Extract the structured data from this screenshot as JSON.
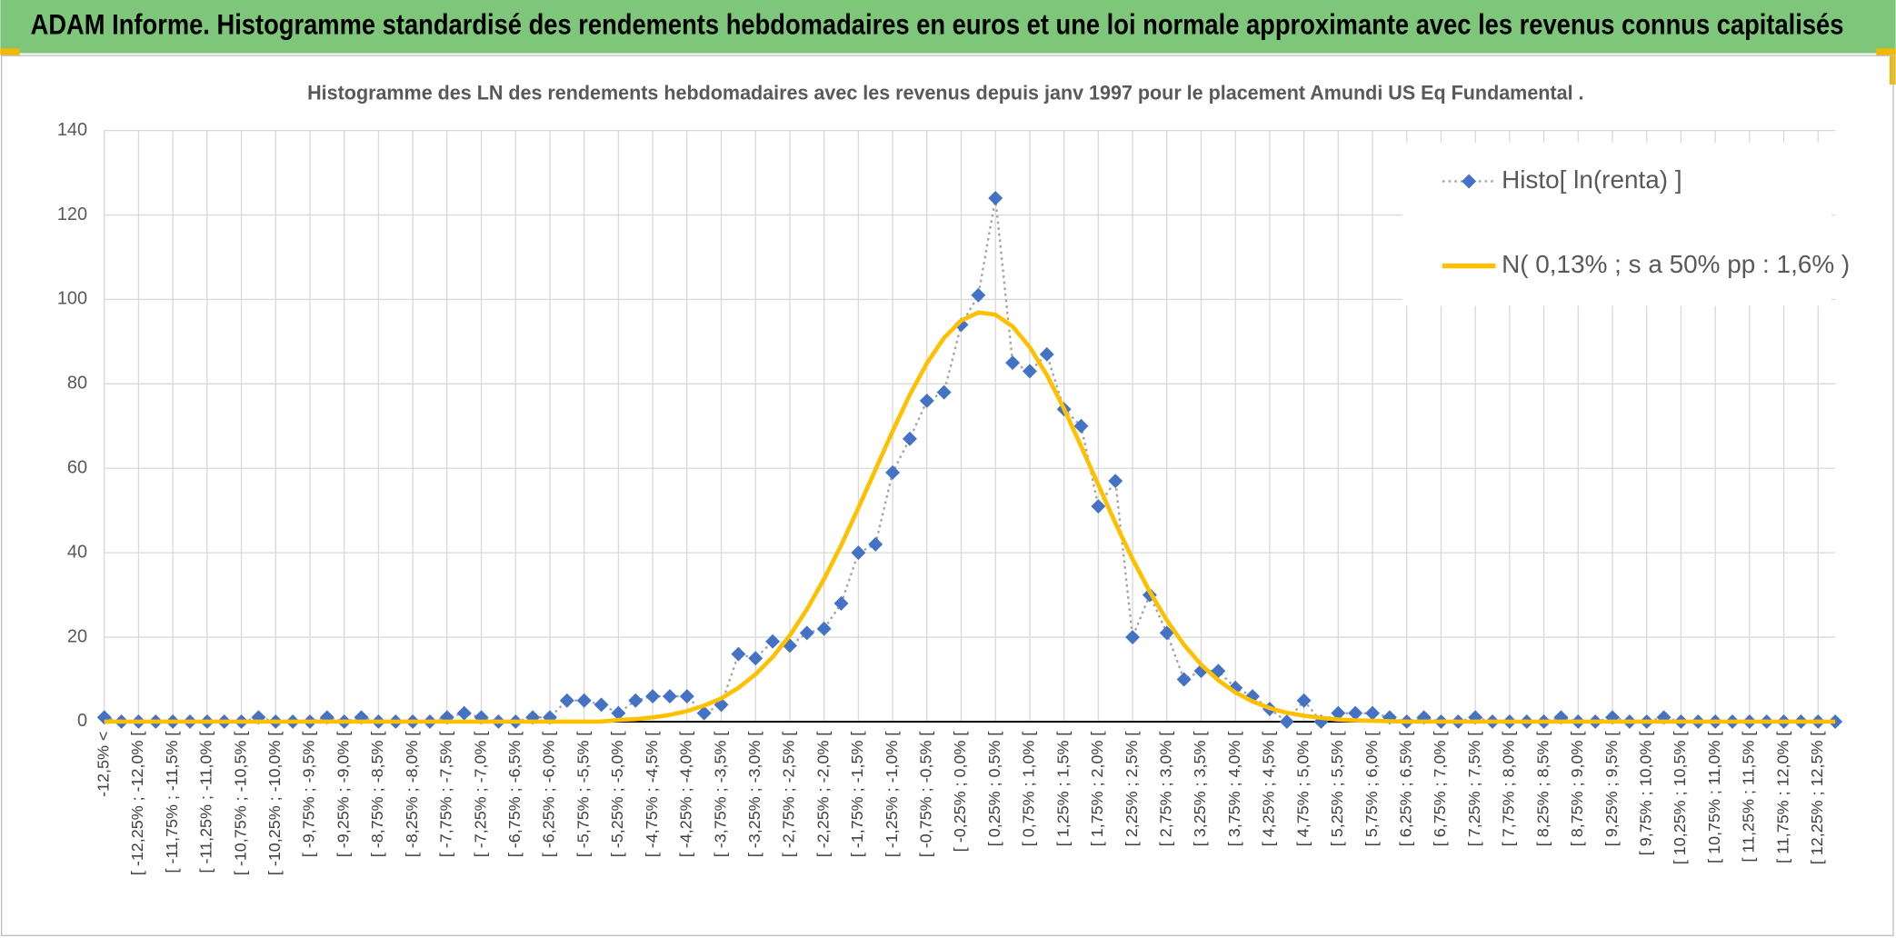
{
  "page_title": "ADAM Informe. Histogramme standardisé des rendements hebdomadaires en euros et une loi normale approximante avec les revenus connus capitalisés",
  "chart_data": {
    "type": "line",
    "title": "Histogramme des LN des rendements hebdomadaires avec les revenus depuis janv 1997 pour le placement Amundi US Eq Fundamental .",
    "categories": [
      "-12,5% <",
      null,
      "[ -12,25% ; -12,0% [",
      null,
      "[ -11,75% ; -11,5% [",
      null,
      "[ -11,25% ; -11,0% [",
      null,
      "[ -10,75% ; -10,5% [",
      null,
      "[ -10,25% ; -10,0% [",
      null,
      "[ -9,75% ; -9,5% [",
      null,
      "[ -9,25% ; -9,0% [",
      null,
      "[ -8,75% ; -8,5% [",
      null,
      "[ -8,25% ; -8,0% [",
      null,
      "[ -7,75% ; -7,5% [",
      null,
      "[ -7,25% ; -7,0% [",
      null,
      "[ -6,75% ; -6,5% [",
      null,
      "[ -6,25% ; -6,0% [",
      null,
      "[ -5,75% ; -5,5% [",
      null,
      "[ -5,25% ; -5,0% [",
      null,
      "[ -4,75% ; -4,5% [",
      null,
      "[ -4,25% ; -4,0% [",
      null,
      "[ -3,75% ; -3,5% [",
      null,
      "[ -3,25% ; -3,0% [",
      null,
      "[ -2,75% ; -2,5% [",
      null,
      "[ -2,25% ; -2,0% [",
      null,
      "[ -1,75% ; -1,5% [",
      null,
      "[ -1,25% ; -1,0% [",
      null,
      "[ -0,75% ; -0,5% [",
      null,
      "[ -0,25% ; 0,0% [",
      null,
      "[ 0,25% ; 0,5% [",
      null,
      "[ 0,75% ; 1,0% [",
      null,
      "[ 1,25% ; 1,5% [",
      null,
      "[ 1,75% ; 2,0% [",
      null,
      "[ 2,25% ; 2,5% [",
      null,
      "[ 2,75% ; 3,0% [",
      null,
      "[ 3,25% ; 3,5% [",
      null,
      "[ 3,75% ; 4,0% [",
      null,
      "[ 4,25% ; 4,5% [",
      null,
      "[ 4,75% ; 5,0% [",
      null,
      "[ 5,25% ; 5,5% [",
      null,
      "[ 5,75% ; 6,0% [",
      null,
      "[ 6,25% ; 6,5% [",
      null,
      "[ 6,75% ; 7,0% [",
      null,
      "[ 7,25% ; 7,5% [",
      null,
      "[ 7,75% ; 8,0% [",
      null,
      "[ 8,25% ; 8,5% [",
      null,
      "[ 8,75% ; 9,0% [",
      null,
      "[ 9,25% ; 9,5% [",
      null,
      "[ 9,75% ; 10,0% [",
      null,
      "[ 10,25% ; 10,5% [",
      null,
      "[ 10,75% ; 11,0% [",
      null,
      "[ 11,25% ; 11,5% [",
      null,
      "[ 11,75% ; 12,0% [",
      null,
      "[ 12,25% ; 12,5% [",
      null
    ],
    "series": [
      {
        "name": "Histo[ ln(renta) ]",
        "color": "#4472c4",
        "line_color": "#a5a5a5",
        "marker": "diamond",
        "values": [
          1,
          0,
          0,
          0,
          0,
          0,
          0,
          0,
          0,
          1,
          0,
          0,
          0,
          1,
          0,
          1,
          0,
          0,
          0,
          0,
          1,
          2,
          1,
          0,
          0,
          1,
          1,
          5,
          5,
          4,
          2,
          5,
          6,
          6,
          6,
          2,
          4,
          16,
          15,
          19,
          18,
          21,
          22,
          28,
          40,
          42,
          59,
          67,
          76,
          78,
          94,
          101,
          124,
          85,
          83,
          87,
          74,
          70,
          51,
          57,
          20,
          30,
          21,
          10,
          12,
          12,
          8,
          6,
          3,
          0,
          5,
          0,
          2,
          2,
          2,
          1,
          0,
          1,
          0,
          0,
          1,
          0,
          0,
          0,
          0,
          1,
          0,
          0,
          1,
          0,
          0,
          1,
          0,
          0,
          0,
          0,
          0,
          0,
          0,
          0,
          0,
          0
        ]
      },
      {
        "name": "N( 0,13% ; s a 50% pp : 1,6% )",
        "color": "#ffc000",
        "values": [
          0,
          0,
          0,
          0,
          0,
          0,
          0,
          0,
          0,
          0,
          0,
          0,
          0,
          0,
          0,
          0,
          0,
          0,
          0,
          0,
          0,
          0,
          0,
          0,
          0,
          0,
          0,
          0,
          0,
          0,
          0.4,
          0.6,
          1.0,
          1.6,
          2.5,
          3.8,
          5.5,
          8.0,
          11.2,
          15.3,
          20.4,
          26.6,
          33.8,
          41.8,
          50.6,
          59.7,
          68.8,
          77.4,
          84.9,
          90.9,
          95.0,
          96.9,
          96.4,
          93.6,
          88.7,
          82.1,
          74.1,
          65.2,
          56.1,
          47.0,
          38.5,
          30.8,
          24.0,
          18.2,
          13.5,
          9.8,
          6.9,
          4.8,
          3.2,
          2.1,
          1.4,
          0.9,
          0.5,
          0.3,
          0.2,
          0.1,
          0,
          0,
          0,
          0,
          0,
          0,
          0,
          0,
          0,
          0,
          0,
          0,
          0,
          0,
          0,
          0,
          0,
          0,
          0,
          0,
          0,
          0,
          0,
          0,
          0,
          0
        ]
      }
    ],
    "ylim": [
      0,
      140
    ],
    "yticks": [
      0,
      20,
      40,
      60,
      80,
      100,
      120,
      140
    ],
    "grid": true,
    "legend": "upper right"
  }
}
